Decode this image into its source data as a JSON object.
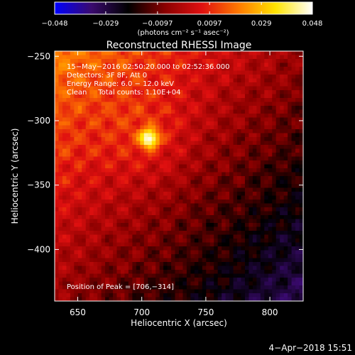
{
  "colorbar": {
    "tick_labels": [
      "−0.048",
      "−0.029",
      "−0.0097",
      "0.0097",
      "0.029",
      "0.048"
    ],
    "ticks": [
      -0.048,
      -0.029,
      -0.0097,
      0.0097,
      0.029,
      0.048
    ],
    "range": [
      -0.048,
      0.048
    ],
    "units": "(photons cm⁻² s⁻¹ asec⁻²)",
    "colors": [
      "#0000ff",
      "#3a0a6e",
      "#000000",
      "#8b0000",
      "#e01010",
      "#ff7a00",
      "#ffe400",
      "#ffffff"
    ]
  },
  "info": {
    "line1": "15−May−2016 02:50:20.000 to 02:52:36.000",
    "line2": "Detectors: 3F 8F, Att 0",
    "line3": "Energy Range: 6.0 − 12.0 keV",
    "line4": "Clean     Total counts: 1.10E+04",
    "peak_text": "Position of Peak = [706,−314]"
  },
  "footer": {
    "timestamp": "4−Apr−2018 15:51"
  },
  "chart_data": {
    "type": "heatmap",
    "title": "Reconstructed RHESSI Image",
    "xlabel": "Heliocentric X (arcsec)",
    "ylabel": "Heliocentric Y (arcsec)",
    "xlim": [
      632,
      826
    ],
    "ylim": [
      -440,
      -246
    ],
    "xticks": [
      650,
      700,
      750,
      800
    ],
    "yticks": [
      -250,
      -300,
      -350,
      -400
    ],
    "xtick_labels": [
      "650",
      "700",
      "750",
      "800"
    ],
    "ytick_labels": [
      "−250",
      "−300",
      "−350",
      "−400"
    ],
    "peak": {
      "x": 706,
      "y": -314
    },
    "value_range": [
      -0.048,
      0.048
    ]
  }
}
